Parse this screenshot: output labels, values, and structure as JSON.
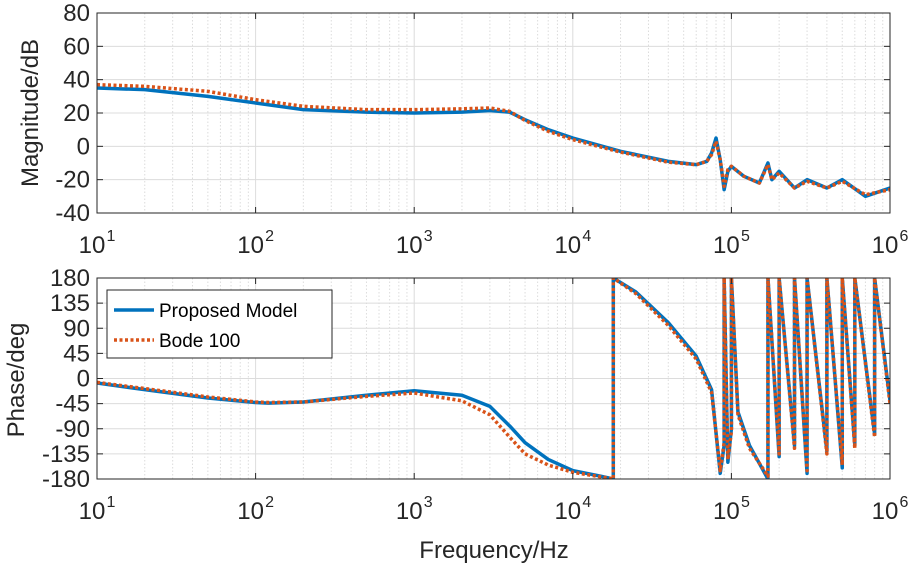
{
  "colors": {
    "proposed": "#0072BD",
    "bode": "#D95319",
    "axis": "#262626",
    "grid": "#dcdcdc"
  },
  "chart_data": [
    {
      "id": "magnitude",
      "type": "line",
      "x_scale": "log",
      "xlim": [
        10,
        1000000
      ],
      "ylim": [
        -40,
        80
      ],
      "xticks": [
        {
          "base": "10",
          "exp": "1"
        },
        {
          "base": "10",
          "exp": "2"
        },
        {
          "base": "10",
          "exp": "3"
        },
        {
          "base": "10",
          "exp": "4"
        },
        {
          "base": "10",
          "exp": "5"
        },
        {
          "base": "10",
          "exp": "6"
        }
      ],
      "yticks": [
        "80",
        "60",
        "40",
        "20",
        "0",
        "-20",
        "-40"
      ],
      "ylabel": "Magnitude/dB",
      "grid": true,
      "series": [
        {
          "name": "Proposed Model",
          "style": "solid",
          "x": [
            10,
            20,
            50,
            100,
            200,
            500,
            1000,
            2000,
            3000,
            4000,
            5000,
            7000,
            10000,
            20000,
            40000,
            60000,
            70000,
            75000,
            80000,
            85000,
            90000,
            95000,
            100000,
            120000,
            150000,
            170000,
            180000,
            200000,
            250000,
            300000,
            400000,
            500000,
            700000,
            1000000
          ],
          "y": [
            35,
            34,
            30,
            26,
            22,
            20.5,
            20,
            20.5,
            21.5,
            20.5,
            16,
            10,
            5,
            -3,
            -9,
            -11,
            -9,
            -4,
            5,
            -8,
            -26,
            -15,
            -12,
            -18,
            -22,
            -10,
            -20,
            -15,
            -25,
            -20,
            -25,
            -20,
            -30,
            -25
          ]
        },
        {
          "name": "Bode 100",
          "style": "dotted",
          "x": [
            10,
            20,
            50,
            100,
            200,
            500,
            1000,
            2000,
            3000,
            4000,
            5000,
            7000,
            10000,
            20000,
            40000,
            60000,
            70000,
            75000,
            80000,
            85000,
            90000,
            95000,
            100000,
            120000,
            150000,
            170000,
            180000,
            200000,
            250000,
            300000,
            400000,
            500000,
            700000,
            1000000
          ],
          "y": [
            37,
            36,
            33,
            28,
            24,
            22,
            22,
            22.5,
            23,
            21,
            15.5,
            9,
            4,
            -3.5,
            -9.5,
            -11,
            -9,
            -5,
            3,
            -8,
            -24,
            -14,
            -12,
            -18,
            -22,
            -11,
            -20,
            -16,
            -25,
            -21,
            -25,
            -21,
            -29,
            -26
          ]
        }
      ]
    },
    {
      "id": "phase",
      "type": "line",
      "x_scale": "log",
      "xlim": [
        10,
        1000000
      ],
      "ylim": [
        -180,
        180
      ],
      "xticks": [
        {
          "base": "10",
          "exp": "1"
        },
        {
          "base": "10",
          "exp": "2"
        },
        {
          "base": "10",
          "exp": "3"
        },
        {
          "base": "10",
          "exp": "4"
        },
        {
          "base": "10",
          "exp": "5"
        },
        {
          "base": "10",
          "exp": "6"
        }
      ],
      "yticks": [
        "180",
        "135",
        "90",
        "45",
        "0",
        "-45",
        "-90",
        "-135",
        "-180"
      ],
      "ylabel": "Phase/deg",
      "xlabel": "Frequency/Hz",
      "grid": true,
      "legend": {
        "position": "top-left",
        "entries": [
          "Proposed Model",
          "Bode 100"
        ]
      },
      "series": [
        {
          "name": "Proposed Model",
          "style": "solid",
          "x": [
            10,
            20,
            50,
            100,
            120,
            200,
            500,
            1000,
            2000,
            3000,
            4000,
            5000,
            7000,
            10000,
            15000,
            18000,
            18000,
            25000,
            40000,
            60000,
            75000,
            85000,
            90000,
            90000,
            95000,
            100000,
            100000,
            110000,
            130000,
            170000,
            170000,
            200000,
            200000,
            250000,
            250000,
            300000,
            300000,
            400000,
            400000,
            500000,
            500000,
            600000,
            600000,
            800000,
            800000,
            1000000
          ],
          "y": [
            -8,
            -20,
            -35,
            -43,
            -44,
            -42,
            -30,
            -22,
            -30,
            -50,
            -85,
            -115,
            -145,
            -165,
            -175,
            -180,
            180,
            155,
            100,
            40,
            -20,
            -170,
            -120,
            180,
            -150,
            -90,
            180,
            -60,
            -120,
            -180,
            180,
            -140,
            180,
            -120,
            180,
            -170,
            180,
            -130,
            180,
            -160,
            180,
            -120,
            180,
            -100,
            180,
            -40
          ]
        },
        {
          "name": "Bode 100",
          "style": "dotted",
          "x": [
            10,
            20,
            50,
            100,
            120,
            200,
            500,
            1000,
            2000,
            3000,
            4000,
            5000,
            7000,
            10000,
            15000,
            18000,
            18000,
            25000,
            40000,
            60000,
            75000,
            85000,
            90000,
            90000,
            95000,
            100000,
            100000,
            110000,
            130000,
            170000,
            170000,
            200000,
            200000,
            250000,
            250000,
            300000,
            300000,
            400000,
            400000,
            500000,
            500000,
            600000,
            600000,
            800000,
            800000,
            1000000
          ],
          "y": [
            -7,
            -18,
            -33,
            -42,
            -43,
            -42,
            -32,
            -26,
            -40,
            -65,
            -105,
            -135,
            -155,
            -168,
            -176,
            -180,
            180,
            152,
            95,
            35,
            -25,
            -165,
            -115,
            180,
            -145,
            -95,
            180,
            -65,
            -125,
            -175,
            180,
            -135,
            180,
            -125,
            180,
            -165,
            180,
            -135,
            180,
            -155,
            180,
            -125,
            180,
            -105,
            180,
            -45
          ]
        }
      ]
    }
  ]
}
